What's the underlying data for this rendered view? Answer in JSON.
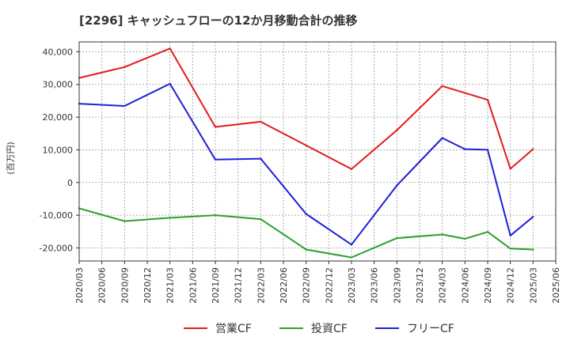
{
  "chart_data": {
    "type": "line",
    "title": "[2296]  キャッシュフローの12か月移動合計の推移",
    "ylabel": "(百万円)",
    "xlabel": "",
    "ylim": [
      -24000,
      43000
    ],
    "yticks": [
      -20000,
      -10000,
      0,
      10000,
      20000,
      30000,
      40000
    ],
    "ytick_labels": [
      "-20,000",
      "-10,000",
      "0",
      "10,000",
      "20,000",
      "30,000",
      "40,000"
    ],
    "xtick_labels": [
      "2020/03",
      "2020/06",
      "2020/09",
      "2020/12",
      "2021/03",
      "2021/06",
      "2021/09",
      "2021/12",
      "2022/03",
      "2022/06",
      "2022/09",
      "2022/12",
      "2023/03",
      "2023/06",
      "2023/09",
      "2023/12",
      "2024/03",
      "2024/06",
      "2024/09",
      "2024/12",
      "2025/03",
      "2025/06"
    ],
    "grid": true,
    "legend_position": "bottom",
    "series": [
      {
        "name": "営業CF",
        "color": "#e31a1c",
        "points": [
          {
            "x": "2020/03",
            "y": 32000
          },
          {
            "x": "2020/09",
            "y": 35300
          },
          {
            "x": "2021/03",
            "y": 41000
          },
          {
            "x": "2021/09",
            "y": 17000
          },
          {
            "x": "2022/03",
            "y": 18600
          },
          {
            "x": "2023/03",
            "y": 4100
          },
          {
            "x": "2023/09",
            "y": 16000
          },
          {
            "x": "2024/03",
            "y": 29500
          },
          {
            "x": "2024/09",
            "y": 25300
          },
          {
            "x": "2024/12",
            "y": 4200
          },
          {
            "x": "2025/03",
            "y": 10200
          }
        ]
      },
      {
        "name": "投資CF",
        "color": "#2ca02c",
        "points": [
          {
            "x": "2020/03",
            "y": -7900
          },
          {
            "x": "2020/09",
            "y": -11800
          },
          {
            "x": "2021/03",
            "y": -10800
          },
          {
            "x": "2021/09",
            "y": -10000
          },
          {
            "x": "2022/03",
            "y": -11200
          },
          {
            "x": "2022/09",
            "y": -20500
          },
          {
            "x": "2023/03",
            "y": -22900
          },
          {
            "x": "2023/09",
            "y": -17000
          },
          {
            "x": "2024/03",
            "y": -15900
          },
          {
            "x": "2024/06",
            "y": -17200
          },
          {
            "x": "2024/09",
            "y": -15100
          },
          {
            "x": "2024/12",
            "y": -20200
          },
          {
            "x": "2025/03",
            "y": -20500
          }
        ]
      },
      {
        "name": "フリーCF",
        "color": "#1f1fd6",
        "points": [
          {
            "x": "2020/03",
            "y": 24100
          },
          {
            "x": "2020/09",
            "y": 23400
          },
          {
            "x": "2021/03",
            "y": 30200
          },
          {
            "x": "2021/09",
            "y": 7000
          },
          {
            "x": "2022/03",
            "y": 7300
          },
          {
            "x": "2022/09",
            "y": -9600
          },
          {
            "x": "2023/03",
            "y": -19000
          },
          {
            "x": "2023/09",
            "y": -900
          },
          {
            "x": "2024/03",
            "y": 13600
          },
          {
            "x": "2024/06",
            "y": 10200
          },
          {
            "x": "2024/09",
            "y": 10000
          },
          {
            "x": "2024/12",
            "y": -16200
          },
          {
            "x": "2025/03",
            "y": -10500
          }
        ]
      }
    ]
  }
}
